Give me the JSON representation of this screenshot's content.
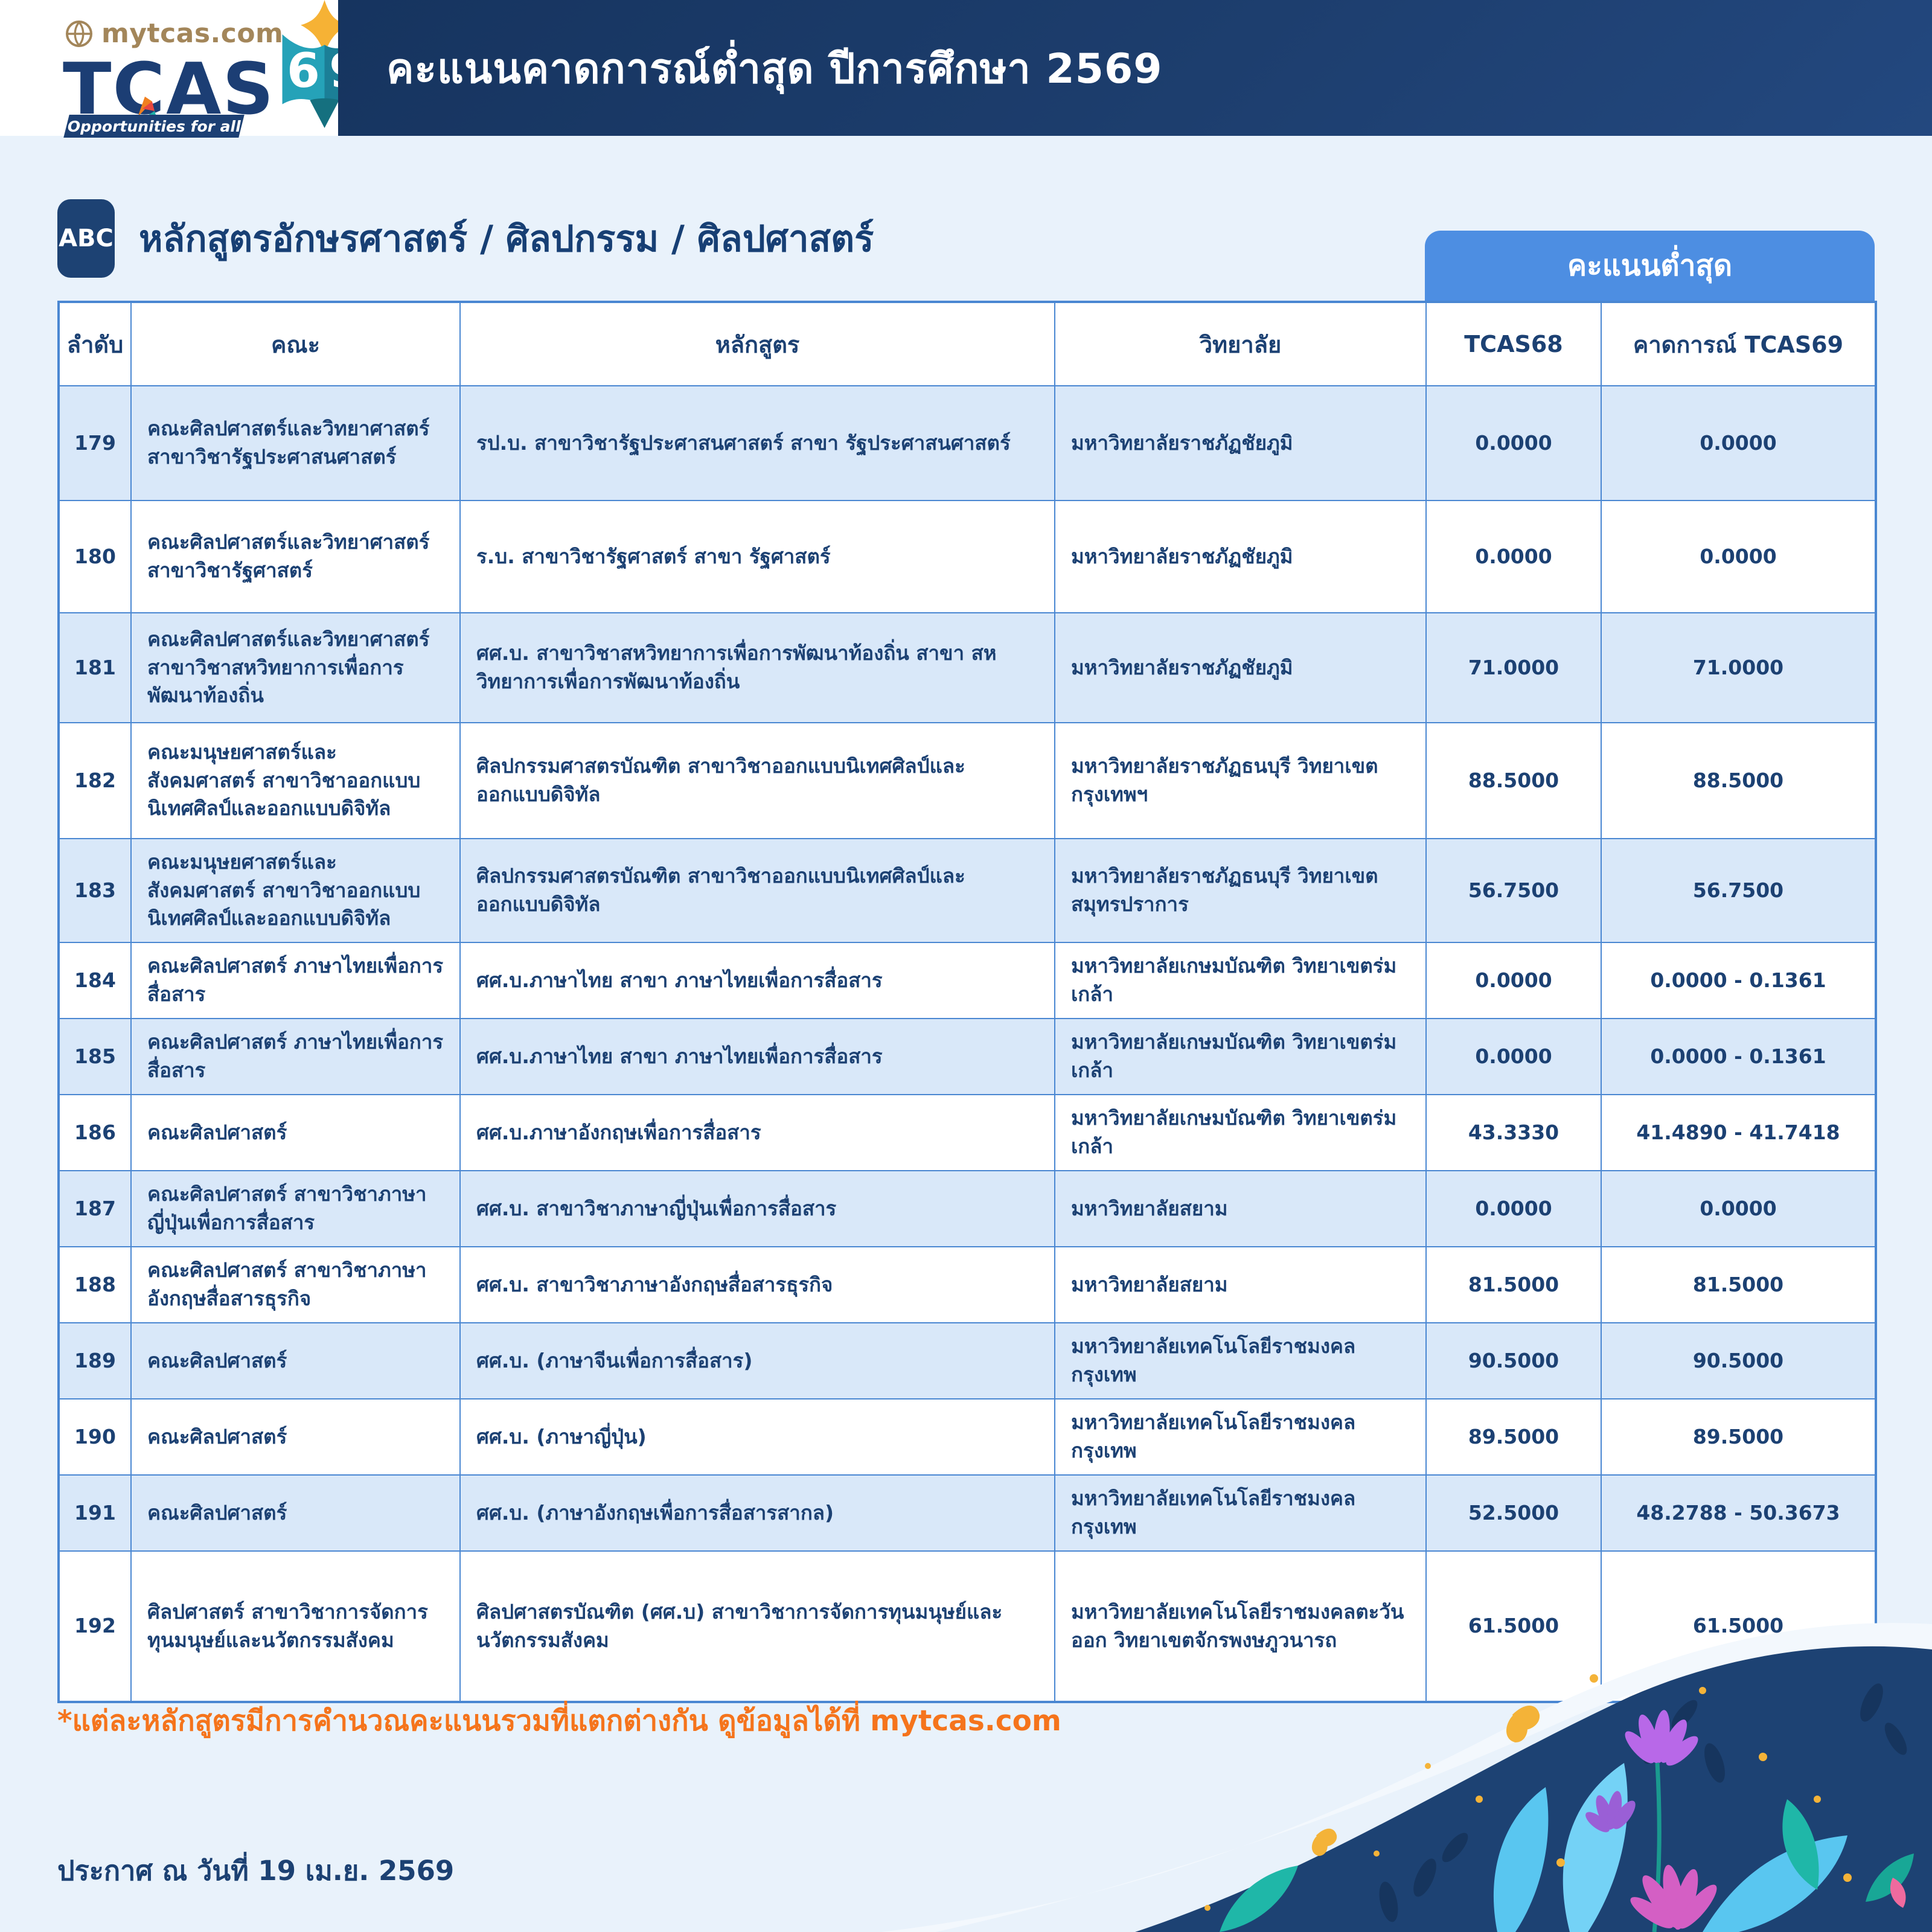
{
  "header": {
    "banner_title": "คะแนนคาดการณ์ต่ำสุด ปีการศึกษา 2569",
    "logo": {
      "site": "mytcas.com",
      "wordmark": "TCAS",
      "emblem_number_left": "6",
      "emblem_number_right": "9",
      "tagline": "Opportunities for all"
    }
  },
  "section": {
    "badge": "ABC",
    "title": "หลักสูตรอักษรศาสตร์ / ศิลปกรรม / ศิลปศาสตร์"
  },
  "table": {
    "group_header": "คะแนนต่ำสุด",
    "columns": [
      "ลำดับ",
      "คณะ",
      "หลักสูตร",
      "วิทยาลัย",
      "TCAS68",
      "คาดการณ์ TCAS69"
    ],
    "rows": [
      {
        "no": "179",
        "faculty": "คณะศิลปศาสตร์และวิทยาศาสตร์ สาขาวิชารัฐประศาสนศาสตร์",
        "program": "รป.บ. สาขาวิชารัฐประศาสนศาสตร์ สาขา รัฐประศาสนศาสตร์",
        "university": "มหาวิทยาลัยราชภัฏชัยภูมิ",
        "tcas68": "0.0000",
        "tcas69": "0.0000"
      },
      {
        "no": "180",
        "faculty": "คณะศิลปศาสตร์และวิทยาศาสตร์ สาขาวิชารัฐศาสตร์",
        "program": "ร.บ. สาขาวิชารัฐศาสตร์ สาขา รัฐศาสตร์",
        "university": "มหาวิทยาลัยราชภัฏชัยภูมิ",
        "tcas68": "0.0000",
        "tcas69": "0.0000"
      },
      {
        "no": "181",
        "faculty": "คณะศิลปศาสตร์และวิทยาศาสตร์ สาขาวิชาสหวิทยาการเพื่อการพัฒนาท้องถิ่น",
        "program": "ศศ.บ. สาขาวิชาสหวิทยาการเพื่อการพัฒนาท้องถิ่น สาขา สหวิทยาการเพื่อการพัฒนาท้องถิ่น",
        "university": "มหาวิทยาลัยราชภัฏชัยภูมิ",
        "tcas68": "71.0000",
        "tcas69": "71.0000"
      },
      {
        "no": "182",
        "faculty": "คณะมนุษยศาสตร์และสังคมศาสตร์ สาขาวิชาออกแบบนิเทศศิลป์และออกแบบดิจิทัล",
        "program": "ศิลปกรรมศาสตรบัณฑิต สาขาวิชาออกแบบนิเทศศิลป์และออกแบบดิจิทัล",
        "university": "มหาวิทยาลัยราชภัฏธนบุรี วิทยาเขตกรุงเทพฯ",
        "tcas68": "88.5000",
        "tcas69": "88.5000"
      },
      {
        "no": "183",
        "faculty": "คณะมนุษยศาสตร์และสังคมศาสตร์ สาขาวิชาออกแบบนิเทศศิลป์และออกแบบดิจิทัล",
        "program": "ศิลปกรรมศาสตรบัณฑิต สาขาวิชาออกแบบนิเทศศิลป์และออกแบบดิจิทัล",
        "university": "มหาวิทยาลัยราชภัฏธนบุรี วิทยาเขตสมุทรปราการ",
        "tcas68": "56.7500",
        "tcas69": "56.7500"
      },
      {
        "no": "184",
        "faculty": "คณะศิลปศาสตร์ ภาษาไทยเพื่อการสื่อสาร",
        "program": "ศศ.บ.ภาษาไทย สาขา ภาษาไทยเพื่อการสื่อสาร",
        "university": "มหาวิทยาลัยเกษมบัณฑิต วิทยาเขตร่มเกล้า",
        "tcas68": "0.0000",
        "tcas69": "0.0000 - 0.1361"
      },
      {
        "no": "185",
        "faculty": "คณะศิลปศาสตร์ ภาษาไทยเพื่อการสื่อสาร",
        "program": "ศศ.บ.ภาษาไทย สาขา ภาษาไทยเพื่อการสื่อสาร",
        "university": "มหาวิทยาลัยเกษมบัณฑิต วิทยาเขตร่มเกล้า",
        "tcas68": "0.0000",
        "tcas69": "0.0000 - 0.1361"
      },
      {
        "no": "186",
        "faculty": "คณะศิลปศาสตร์",
        "program": "ศศ.บ.ภาษาอังกฤษเพื่อการสื่อสาร",
        "university": "มหาวิทยาลัยเกษมบัณฑิต วิทยาเขตร่มเกล้า",
        "tcas68": "43.3330",
        "tcas69": "41.4890 - 41.7418"
      },
      {
        "no": "187",
        "faculty": "คณะศิลปศาสตร์ สาขาวิชาภาษาญี่ปุ่นเพื่อการสื่อสาร",
        "program": "ศศ.บ. สาขาวิชาภาษาญี่ปุ่นเพื่อการสื่อสาร",
        "university": "มหาวิทยาลัยสยาม",
        "tcas68": "0.0000",
        "tcas69": "0.0000"
      },
      {
        "no": "188",
        "faculty": "คณะศิลปศาสตร์ สาขาวิชาภาษาอังกฤษสื่อสารธุรกิจ",
        "program": "ศศ.บ. สาขาวิชาภาษาอังกฤษสื่อสารธุรกิจ",
        "university": "มหาวิทยาลัยสยาม",
        "tcas68": "81.5000",
        "tcas69": "81.5000"
      },
      {
        "no": "189",
        "faculty": "คณะศิลปศาสตร์",
        "program": "ศศ.บ. (ภาษาจีนเพื่อการสื่อสาร)",
        "university": "มหาวิทยาลัยเทคโนโลยีราชมงคลกรุงเทพ",
        "tcas68": "90.5000",
        "tcas69": "90.5000"
      },
      {
        "no": "190",
        "faculty": "คณะศิลปศาสตร์",
        "program": "ศศ.บ. (ภาษาญี่ปุ่น)",
        "university": "มหาวิทยาลัยเทคโนโลยีราชมงคลกรุงเทพ",
        "tcas68": "89.5000",
        "tcas69": "89.5000"
      },
      {
        "no": "191",
        "faculty": "คณะศิลปศาสตร์",
        "program": "ศศ.บ. (ภาษาอังกฤษเพื่อการสื่อสารสากล)",
        "university": "มหาวิทยาลัยเทคโนโลยีราชมงคลกรุงเทพ",
        "tcas68": "52.5000",
        "tcas69": "48.2788 - 50.3673"
      },
      {
        "no": "192",
        "faculty": "ศิลปศาสตร์ สาขาวิชาการจัดการทุนมนุษย์และนวัตกรรมสังคม",
        "program": "ศิลปศาสตรบัณฑิต (ศศ.บ) สาขาวิชาการจัดการทุนมนุษย์และนวัตกรรมสังคม",
        "university": "มหาวิทยาลัยเทคโนโลยีราชมงคลตะวันออก วิทยาเขตจักรพงษภูวนารถ",
        "tcas68": "61.5000",
        "tcas69": "61.5000"
      }
    ]
  },
  "footnote": "*แต่ละหลักสูตรมีการคำนวณคะแนนรวมที่แตกต่างกัน ดูข้อมูลได้ที่ mytcas.com",
  "publish_date": "ประกาศ ณ วันที่ 19 เม.ย. 2569",
  "colors": {
    "banner_navy": "#1d3e6e",
    "table_line_blue": "#4a87d2",
    "row_alt_blue": "#d9e8f9",
    "group_header_blue": "#4d8ee2",
    "text_navy": "#1c4173",
    "footnote_orange": "#f5741c",
    "logo_tan": "#a3865a",
    "emblem_teal": "#1f93ab",
    "emblem_yellow": "#f6b235"
  }
}
